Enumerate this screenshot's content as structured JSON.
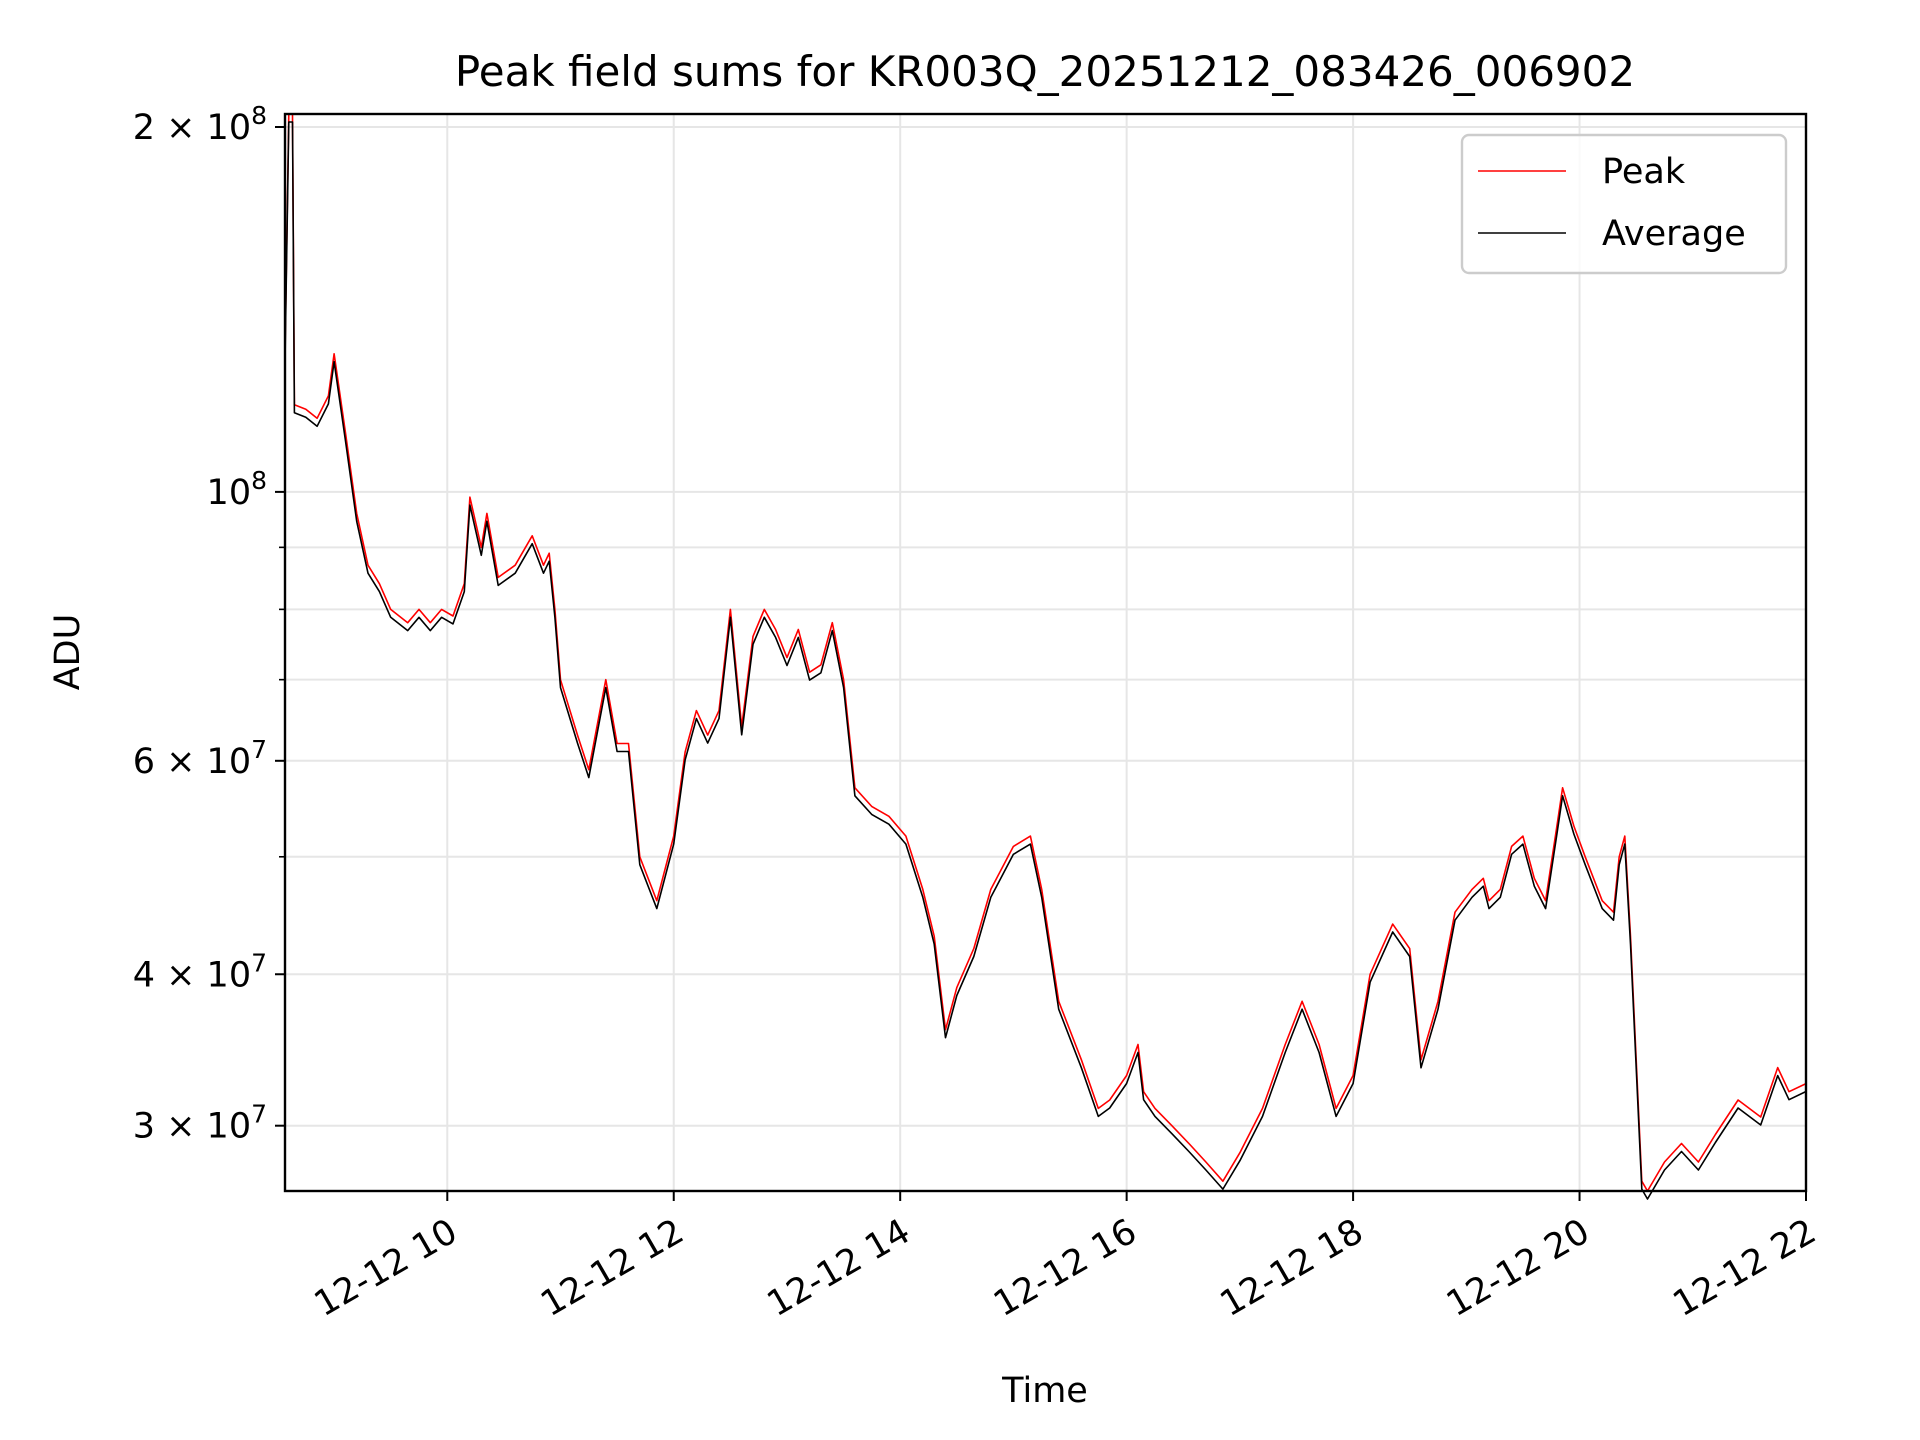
{
  "chart_data": {
    "type": "line",
    "title": "Peak field sums for KR003Q_20251212_083426_006902",
    "xlabel": "Time",
    "ylabel": "ADU",
    "y_scale": "log",
    "grid": true,
    "legend_position": "top-right",
    "xlim": [
      "2025-12-12 08:34",
      "2025-12-12 22:00"
    ],
    "ylim": [
      26500000,
      205000000
    ],
    "x_ticks": [
      {
        "t": "2025-12-12 10:00",
        "label": "12-12 10"
      },
      {
        "t": "2025-12-12 12:00",
        "label": "12-12 12"
      },
      {
        "t": "2025-12-12 14:00",
        "label": "12-12 14"
      },
      {
        "t": "2025-12-12 16:00",
        "label": "12-12 16"
      },
      {
        "t": "2025-12-12 18:00",
        "label": "12-12 18"
      },
      {
        "t": "2025-12-12 20:00",
        "label": "12-12 20"
      },
      {
        "t": "2025-12-12 22:00",
        "label": "12-12 22"
      }
    ],
    "y_ticks": [
      {
        "value": 30000000,
        "mantissa": "3",
        "exp": "7"
      },
      {
        "value": 40000000,
        "mantissa": "4",
        "exp": "7"
      },
      {
        "value": 60000000,
        "mantissa": "6",
        "exp": "7"
      },
      {
        "value": 100000000,
        "mantissa": "",
        "exp": "8"
      },
      {
        "value": 200000000,
        "mantissa": "2",
        "exp": "8"
      }
    ],
    "y_minor_ticks": [
      50000000,
      70000000,
      80000000,
      90000000
    ],
    "series": [
      {
        "name": "Peak",
        "color": "#ff0000",
        "points": [
          [
            "2025-12-12 08:34",
            130000000
          ],
          [
            "2025-12-12 08:36",
            205000000
          ],
          [
            "2025-12-12 08:38",
            205000000
          ],
          [
            "2025-12-12 08:39",
            118000000
          ],
          [
            "2025-12-12 08:45",
            117000000
          ],
          [
            "2025-12-12 08:51",
            115000000
          ],
          [
            "2025-12-12 08:57",
            120000000
          ],
          [
            "2025-12-12 09:00",
            130000000
          ],
          [
            "2025-12-12 09:06",
            112000000
          ],
          [
            "2025-12-12 09:12",
            96000000
          ],
          [
            "2025-12-12 09:18",
            87000000
          ],
          [
            "2025-12-12 09:24",
            84000000
          ],
          [
            "2025-12-12 09:30",
            80000000
          ],
          [
            "2025-12-12 09:39",
            78000000
          ],
          [
            "2025-12-12 09:45",
            80000000
          ],
          [
            "2025-12-12 09:51",
            78000000
          ],
          [
            "2025-12-12 09:57",
            80000000
          ],
          [
            "2025-12-12 10:03",
            79000000
          ],
          [
            "2025-12-12 10:09",
            84000000
          ],
          [
            "2025-12-12 10:12",
            99000000
          ],
          [
            "2025-12-12 10:18",
            90000000
          ],
          [
            "2025-12-12 10:21",
            96000000
          ],
          [
            "2025-12-12 10:27",
            85000000
          ],
          [
            "2025-12-12 10:36",
            87000000
          ],
          [
            "2025-12-12 10:45",
            92000000
          ],
          [
            "2025-12-12 10:51",
            87000000
          ],
          [
            "2025-12-12 10:54",
            89000000
          ],
          [
            "2025-12-12 10:57",
            80000000
          ],
          [
            "2025-12-12 11:00",
            70000000
          ],
          [
            "2025-12-12 11:09",
            63000000
          ],
          [
            "2025-12-12 11:15",
            59000000
          ],
          [
            "2025-12-12 11:24",
            70000000
          ],
          [
            "2025-12-12 11:30",
            62000000
          ],
          [
            "2025-12-12 11:36",
            62000000
          ],
          [
            "2025-12-12 11:42",
            50000000
          ],
          [
            "2025-12-12 11:51",
            46000000
          ],
          [
            "2025-12-12 12:00",
            52000000
          ],
          [
            "2025-12-12 12:06",
            61000000
          ],
          [
            "2025-12-12 12:12",
            66000000
          ],
          [
            "2025-12-12 12:18",
            63000000
          ],
          [
            "2025-12-12 12:24",
            66000000
          ],
          [
            "2025-12-12 12:30",
            80000000
          ],
          [
            "2025-12-12 12:36",
            64000000
          ],
          [
            "2025-12-12 12:42",
            76000000
          ],
          [
            "2025-12-12 12:48",
            80000000
          ],
          [
            "2025-12-12 12:54",
            77000000
          ],
          [
            "2025-12-12 13:00",
            73000000
          ],
          [
            "2025-12-12 13:06",
            77000000
          ],
          [
            "2025-12-12 13:12",
            71000000
          ],
          [
            "2025-12-12 13:18",
            72000000
          ],
          [
            "2025-12-12 13:24",
            78000000
          ],
          [
            "2025-12-12 13:30",
            70000000
          ],
          [
            "2025-12-12 13:36",
            57000000
          ],
          [
            "2025-12-12 13:45",
            55000000
          ],
          [
            "2025-12-12 13:54",
            54000000
          ],
          [
            "2025-12-12 14:03",
            52000000
          ],
          [
            "2025-12-12 14:12",
            47000000
          ],
          [
            "2025-12-12 14:18",
            43000000
          ],
          [
            "2025-12-12 14:24",
            36000000
          ],
          [
            "2025-12-12 14:30",
            39000000
          ],
          [
            "2025-12-12 14:39",
            42000000
          ],
          [
            "2025-12-12 14:48",
            47000000
          ],
          [
            "2025-12-12 15:00",
            51000000
          ],
          [
            "2025-12-12 15:09",
            52000000
          ],
          [
            "2025-12-12 15:15",
            47000000
          ],
          [
            "2025-12-12 15:24",
            38000000
          ],
          [
            "2025-12-12 15:36",
            34000000
          ],
          [
            "2025-12-12 15:45",
            31000000
          ],
          [
            "2025-12-12 15:51",
            31500000
          ],
          [
            "2025-12-12 16:00",
            33000000
          ],
          [
            "2025-12-12 16:06",
            35000000
          ],
          [
            "2025-12-12 16:09",
            32000000
          ],
          [
            "2025-12-12 16:15",
            31000000
          ],
          [
            "2025-12-12 16:24",
            30000000
          ],
          [
            "2025-12-12 16:33",
            29000000
          ],
          [
            "2025-12-12 16:42",
            28000000
          ],
          [
            "2025-12-12 16:51",
            27000000
          ],
          [
            "2025-12-12 17:00",
            28500000
          ],
          [
            "2025-12-12 17:12",
            31000000
          ],
          [
            "2025-12-12 17:24",
            35000000
          ],
          [
            "2025-12-12 17:33",
            38000000
          ],
          [
            "2025-12-12 17:42",
            35000000
          ],
          [
            "2025-12-12 17:51",
            31000000
          ],
          [
            "2025-12-12 18:00",
            33000000
          ],
          [
            "2025-12-12 18:09",
            40000000
          ],
          [
            "2025-12-12 18:21",
            44000000
          ],
          [
            "2025-12-12 18:30",
            42000000
          ],
          [
            "2025-12-12 18:36",
            34000000
          ],
          [
            "2025-12-12 18:45",
            38000000
          ],
          [
            "2025-12-12 18:54",
            45000000
          ],
          [
            "2025-12-12 19:03",
            47000000
          ],
          [
            "2025-12-12 19:09",
            48000000
          ],
          [
            "2025-12-12 19:12",
            46000000
          ],
          [
            "2025-12-12 19:18",
            47000000
          ],
          [
            "2025-12-12 19:24",
            51000000
          ],
          [
            "2025-12-12 19:30",
            52000000
          ],
          [
            "2025-12-12 19:36",
            48000000
          ],
          [
            "2025-12-12 19:42",
            46000000
          ],
          [
            "2025-12-12 19:48",
            53000000
          ],
          [
            "2025-12-12 19:51",
            57000000
          ],
          [
            "2025-12-12 19:57",
            53000000
          ],
          [
            "2025-12-12 20:03",
            50000000
          ],
          [
            "2025-12-12 20:12",
            46000000
          ],
          [
            "2025-12-12 20:18",
            45000000
          ],
          [
            "2025-12-12 20:21",
            50000000
          ],
          [
            "2025-12-12 20:24",
            52000000
          ],
          [
            "2025-12-12 20:27",
            43000000
          ],
          [
            "2025-12-12 20:33",
            27000000
          ],
          [
            "2025-12-12 20:36",
            26500000
          ],
          [
            "2025-12-12 20:45",
            28000000
          ],
          [
            "2025-12-12 20:54",
            29000000
          ],
          [
            "2025-12-12 21:03",
            28000000
          ],
          [
            "2025-12-12 21:12",
            29500000
          ],
          [
            "2025-12-12 21:24",
            31500000
          ],
          [
            "2025-12-12 21:36",
            30500000
          ],
          [
            "2025-12-12 21:45",
            33500000
          ],
          [
            "2025-12-12 21:51",
            32000000
          ],
          [
            "2025-12-12 22:00",
            32500000
          ]
        ]
      },
      {
        "name": "Average",
        "color": "#000000",
        "points": []
      }
    ]
  }
}
